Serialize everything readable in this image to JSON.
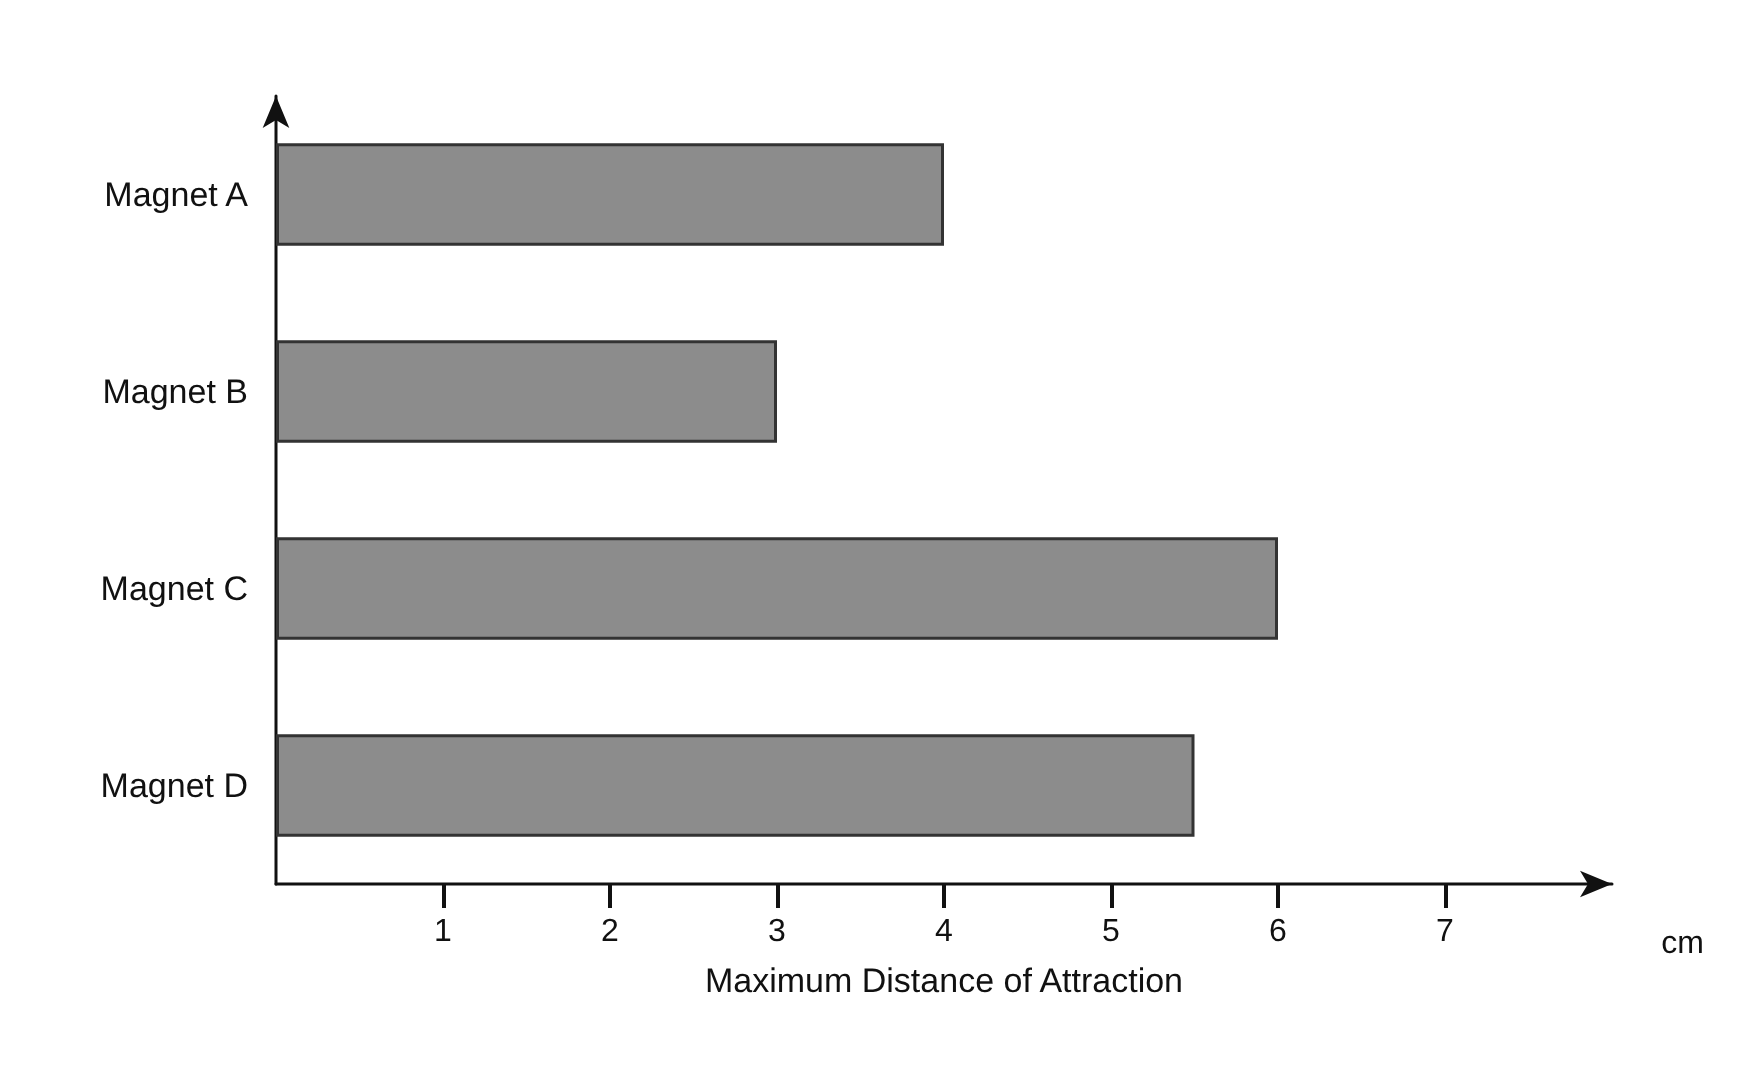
{
  "chart_data": {
    "type": "bar",
    "orientation": "horizontal",
    "xlabel": "Maximum Distance of Attraction",
    "categories": [
      "Magnet A",
      "Magnet B",
      "Magnet C",
      "Magnet D"
    ],
    "values": [
      4,
      3,
      6,
      5.5
    ],
    "color": "#8c8c8c",
    "xlim": [
      0,
      8
    ],
    "xticks": [
      1,
      2,
      3,
      4,
      5,
      6,
      7
    ],
    "grid": false,
    "annotations": [
      "cm"
    ]
  }
}
